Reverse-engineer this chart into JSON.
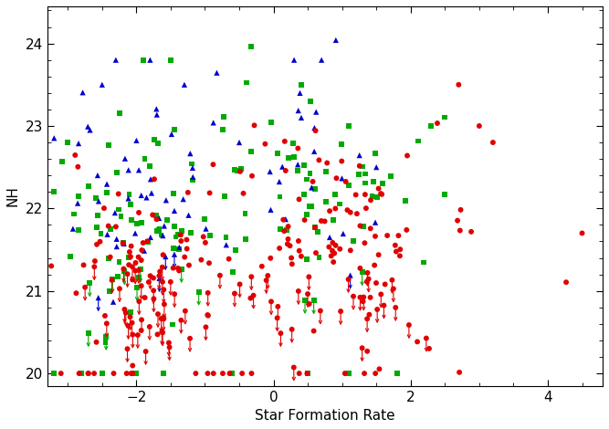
{
  "xlabel": "Star Formation Rate",
  "ylabel": "NH",
  "xlim": [
    -3.3,
    4.8
  ],
  "ylim": [
    19.85,
    24.45
  ],
  "xticks": [
    -2,
    0,
    2,
    4
  ],
  "yticks": [
    20,
    21,
    22,
    23,
    24
  ],
  "figsize": [
    6.67,
    4.7
  ],
  "dpi": 100,
  "red_color": "#e00000",
  "green_color": "#00aa00",
  "blue_color": "#0000cc",
  "seed": 42,
  "n_red": 280,
  "n_green": 160,
  "n_blue": 80
}
